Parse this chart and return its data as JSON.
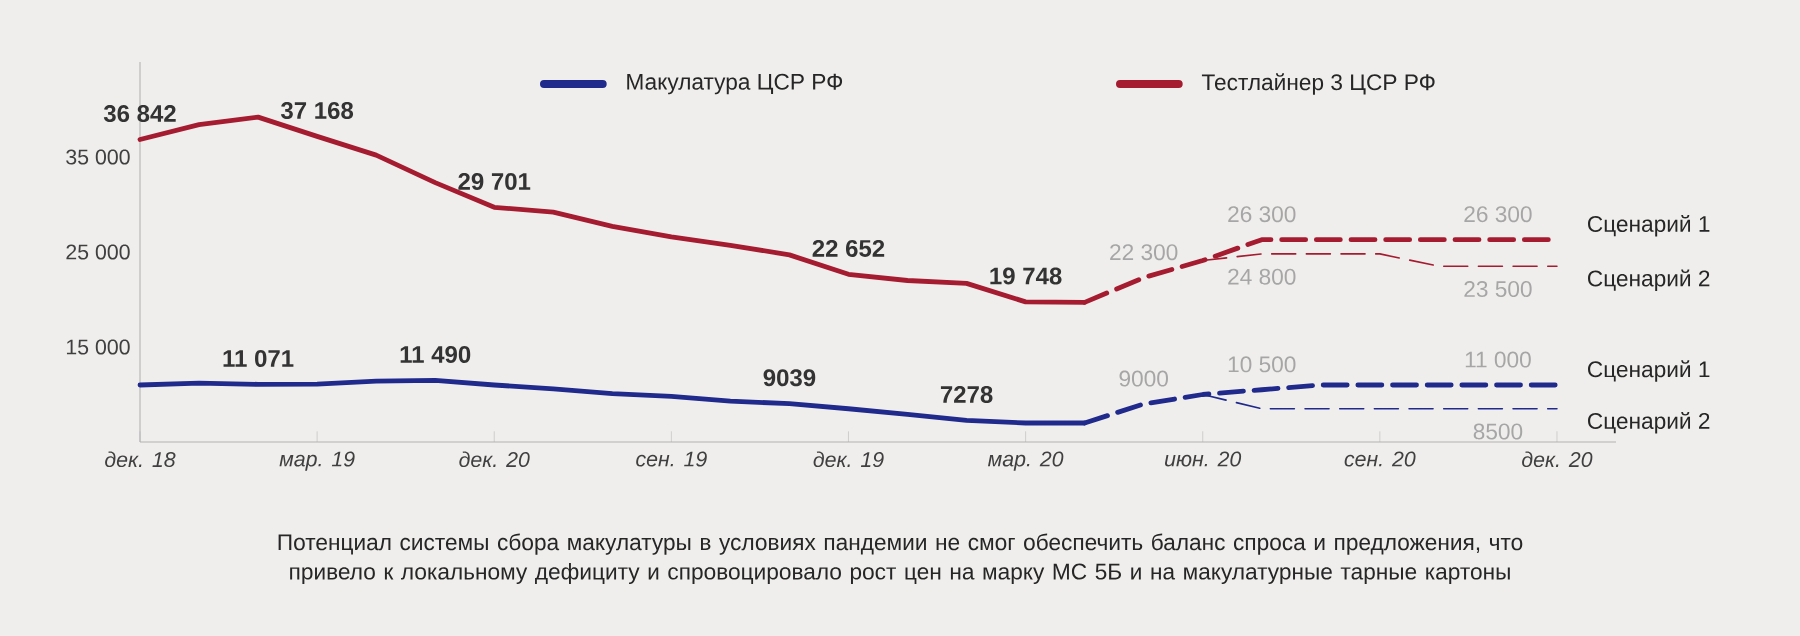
{
  "chart_data": {
    "type": "line",
    "categories": [
      "дек. 18",
      null,
      null,
      "мар. 19",
      null,
      null,
      "дек. 20",
      null,
      null,
      "сен. 19",
      null,
      null,
      "дек. 19",
      null,
      null,
      "мар. 20",
      null,
      null,
      "июн. 20",
      null,
      null,
      "сен. 20",
      null,
      null,
      "дек. 20"
    ],
    "ylim": [
      5000,
      45000
    ],
    "yticks": [
      {
        "value": 15000,
        "label": "15 000"
      },
      {
        "value": 25000,
        "label": "25 000"
      },
      {
        "value": 35000,
        "label": "35 000"
      }
    ],
    "grid": false,
    "legend": "top",
    "marker": "none",
    "series": [
      {
        "name": "Макулатура ЦСР РФ",
        "color": "#1f2a8c",
        "line_style": "solid",
        "values": [
          11000,
          11200,
          11071,
          11100,
          11400,
          11490,
          11000,
          10600,
          10100,
          9800,
          9300,
          9039,
          8500,
          7900,
          7278,
          7000,
          7000,
          null,
          null,
          null,
          null,
          null,
          null,
          null,
          null
        ],
        "value_labels": [
          null,
          null,
          "11 071",
          null,
          null,
          "11 490",
          null,
          null,
          null,
          null,
          null,
          "9039",
          null,
          null,
          "7278",
          null,
          null,
          null,
          null,
          null,
          null,
          null,
          null,
          null,
          null
        ]
      },
      {
        "name": "Тестлайнер 3 ЦСР РФ",
        "color": "#a51c30",
        "line_style": "solid",
        "values": [
          36842,
          38400,
          39200,
          37168,
          35200,
          32300,
          29701,
          29200,
          27700,
          26600,
          25700,
          24700,
          22652,
          22000,
          21700,
          19748,
          19700,
          null,
          null,
          null,
          null,
          null,
          null,
          null,
          null
        ],
        "value_labels": [
          "36 842",
          null,
          null,
          "37 168",
          null,
          null,
          "29 701",
          null,
          null,
          null,
          null,
          null,
          "22 652",
          null,
          null,
          "19 748",
          null,
          null,
          null,
          null,
          null,
          null,
          null,
          null,
          null
        ]
      },
      {
        "name": "Сценарий 1",
        "color": "#a51c30",
        "line_style": "dashed",
        "values": [
          null,
          null,
          null,
          null,
          null,
          null,
          null,
          null,
          null,
          null,
          null,
          null,
          null,
          null,
          null,
          null,
          19700,
          22300,
          24100,
          26300,
          26300,
          26300,
          26300,
          26300,
          26300
        ],
        "value_labels": [
          null,
          null,
          null,
          null,
          null,
          null,
          null,
          null,
          null,
          null,
          null,
          null,
          null,
          null,
          null,
          null,
          null,
          "22 300",
          null,
          "26 300",
          null,
          null,
          null,
          "26 300",
          null
        ]
      },
      {
        "name": "Сценарий 2",
        "color": "#a51c30",
        "line_style": "dashed",
        "values": [
          null,
          null,
          null,
          null,
          null,
          null,
          null,
          null,
          null,
          null,
          null,
          null,
          null,
          null,
          null,
          null,
          null,
          null,
          24100,
          24800,
          24800,
          24800,
          23500,
          23500,
          23500
        ],
        "value_labels": [
          null,
          null,
          null,
          null,
          null,
          null,
          null,
          null,
          null,
          null,
          null,
          null,
          null,
          null,
          null,
          null,
          null,
          null,
          null,
          "24 800",
          null,
          null,
          null,
          "23 500",
          null
        ]
      },
      {
        "name": "Сценарий 1",
        "color": "#1f2a8c",
        "line_style": "dashed",
        "values": [
          null,
          null,
          null,
          null,
          null,
          null,
          null,
          null,
          null,
          null,
          null,
          null,
          null,
          null,
          null,
          null,
          7000,
          9000,
          10000,
          10500,
          11000,
          11000,
          11000,
          11000,
          11000
        ],
        "value_labels": [
          null,
          null,
          null,
          null,
          null,
          null,
          null,
          null,
          null,
          null,
          null,
          null,
          null,
          null,
          null,
          null,
          null,
          "9000",
          null,
          "10 500",
          null,
          null,
          null,
          "11 000",
          null
        ]
      },
      {
        "name": "Сценарий 2",
        "color": "#1f2a8c",
        "line_style": "dashed",
        "values": [
          null,
          null,
          null,
          null,
          null,
          null,
          null,
          null,
          null,
          null,
          null,
          null,
          null,
          null,
          null,
          null,
          null,
          null,
          10000,
          8500,
          8500,
          8500,
          8500,
          8500,
          8500
        ],
        "value_labels": [
          null,
          null,
          null,
          null,
          null,
          null,
          null,
          null,
          null,
          null,
          null,
          null,
          null,
          null,
          null,
          null,
          null,
          null,
          null,
          null,
          null,
          null,
          null,
          "8500",
          null
        ]
      }
    ],
    "annotations": [
      "Потенциал системы сбора макулатуры в условиях пандемии не смог обеспечить баланс спроса и предложения, что привело к локальному дефициту и спровоцировало рост цен на марку МС 5Б и на макулатурные тарные картоны"
    ]
  }
}
